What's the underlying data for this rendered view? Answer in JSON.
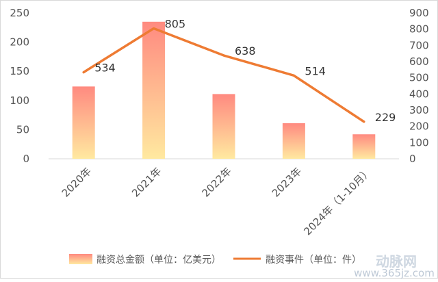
{
  "chart_data": {
    "type": "bar+line",
    "categories": [
      "2020年",
      "2021年",
      "2022年",
      "2023年",
      "2024年（1-10月）"
    ],
    "series": [
      {
        "name": "融资总金额（单位：亿美元）",
        "type": "bar",
        "axis": "left",
        "values": [
          124,
          235,
          111,
          61,
          42
        ]
      },
      {
        "name": "融资事件（单位：件）",
        "type": "line",
        "axis": "right",
        "values": [
          534,
          805,
          638,
          514,
          229
        ],
        "data_labels": [
          "534",
          "805",
          "638",
          "514",
          "229"
        ]
      }
    ],
    "y_left": {
      "ticks": [
        "0",
        "50",
        "100",
        "150",
        "200",
        "250"
      ],
      "range": [
        0,
        250
      ]
    },
    "y_right": {
      "ticks": [
        "0",
        "100",
        "200",
        "300",
        "400",
        "500",
        "600",
        "700",
        "800",
        "900"
      ],
      "range": [
        0,
        900
      ]
    },
    "grid": false,
    "legend_position": "bottom",
    "colors": {
      "bar_top": "#ff8a80",
      "bar_bottom": "#ffe9a0",
      "line": "#ee7b33"
    }
  },
  "watermark": {
    "brand": "动脉网",
    "url": "www.365jz.com"
  }
}
